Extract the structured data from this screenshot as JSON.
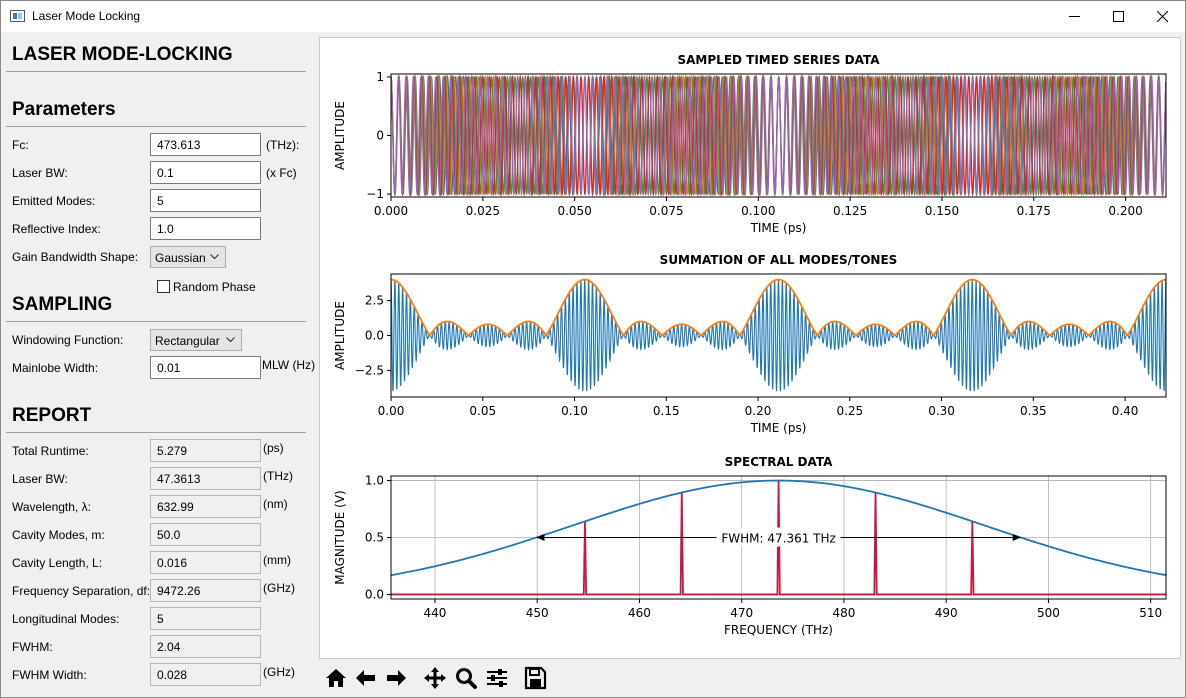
{
  "window": {
    "title": "Laser Mode Locking"
  },
  "sidebar": {
    "heading": "LASER MODE-LOCKING",
    "parameters": {
      "heading": "Parameters",
      "fc": {
        "label": "Fc:",
        "value": "473.613",
        "unit": "(THz):"
      },
      "laser_bw": {
        "label": "Laser BW:",
        "value": "0.1",
        "unit": "(x Fc)"
      },
      "emitted_modes": {
        "label": "Emitted Modes:",
        "value": "5"
      },
      "reflective_index": {
        "label": "Reflective Index:",
        "value": "1.0"
      },
      "gain_shape": {
        "label": "Gain Bandwidth Shape:",
        "value": "Gaussian"
      },
      "random_phase": {
        "label": "Random Phase",
        "checked": false
      }
    },
    "sampling": {
      "heading": "SAMPLING",
      "windowing": {
        "label": "Windowing Function:",
        "value": "Rectangular"
      },
      "mainlobe": {
        "label": "Mainlobe Width:",
        "value": "0.01",
        "unit": "MLW (Hz)"
      }
    },
    "report": {
      "heading": "REPORT",
      "rows": [
        {
          "label": "Total Runtime:",
          "value": "5.279",
          "unit": "(ps)"
        },
        {
          "label": "Laser BW:",
          "value": "47.3613",
          "unit": "(THz)"
        },
        {
          "label": "Wavelength, λ:",
          "value": "632.99",
          "unit": "(nm)"
        },
        {
          "label": "Cavity Modes, m:",
          "value": "50.0",
          "unit": ""
        },
        {
          "label": "Cavity Length, L:",
          "value": "0.016",
          "unit": "(mm)"
        },
        {
          "label": "Frequency Separation, df:",
          "value": "9472.26",
          "unit": "(GHz)"
        },
        {
          "label": "Longitudinal Modes:",
          "value": "5",
          "unit": ""
        },
        {
          "label": "FWHM:",
          "value": "2.04",
          "unit": ""
        },
        {
          "label": "FWHM Width:",
          "value": "0.028",
          "unit": "(GHz)"
        }
      ]
    }
  },
  "chart_data": [
    {
      "type": "line",
      "title": "SAMPLED TIMED SERIES DATA",
      "xlabel": "TIME (ps)",
      "ylabel": "AMPLITUDE",
      "xlim": [
        0,
        0.211
      ],
      "ylim": [
        -1.05,
        1.05
      ],
      "xticks": [
        "0.000",
        "0.025",
        "0.050",
        "0.075",
        "0.100",
        "0.125",
        "0.150",
        "0.175",
        "0.200"
      ],
      "xtick_values": [
        0,
        0.025,
        0.05,
        0.075,
        0.1,
        0.125,
        0.15,
        0.175,
        0.2
      ],
      "yticks": [
        "1",
        "0",
        "−1"
      ],
      "ytick_values": [
        1,
        0,
        -1
      ],
      "series": [
        {
          "name": "mode 1",
          "freq_thz": 454.67,
          "color": "#1f77b4"
        },
        {
          "name": "mode 2",
          "freq_thz": 464.14,
          "color": "#ff7f0e"
        },
        {
          "name": "mode 3",
          "freq_thz": 473.61,
          "color": "#2ca02c"
        },
        {
          "name": "mode 4",
          "freq_thz": 483.09,
          "color": "#d62728"
        },
        {
          "name": "mode 5",
          "freq_thz": 492.56,
          "color": "#9467bd"
        }
      ]
    },
    {
      "type": "line",
      "title": "SUMMATION OF ALL MODES/TONES",
      "xlabel": "TIME (ps)",
      "ylabel": "AMPLITUDE",
      "xlim": [
        0,
        0.4223
      ],
      "ylim": [
        -4.4,
        4.4
      ],
      "xticks": [
        "0.00",
        "0.05",
        "0.10",
        "0.15",
        "0.20",
        "0.25",
        "0.30",
        "0.35",
        "0.40"
      ],
      "xtick_values": [
        0,
        0.05,
        0.1,
        0.15,
        0.2,
        0.25,
        0.3,
        0.35,
        0.4
      ],
      "yticks": [
        "2.5",
        "0.0",
        "−2.5"
      ],
      "ytick_values": [
        2.5,
        0,
        -2.5
      ],
      "pulse_period_ps": 0.1056,
      "modes": 5,
      "series": [
        {
          "name": "signal",
          "color": "#1f77b4"
        },
        {
          "name": "envelope",
          "color": "#ff7f0e"
        }
      ]
    },
    {
      "type": "line",
      "title": "SPECTRAL DATA",
      "xlabel": "FREQUENCY (THz)",
      "ylabel": "MAGNITUDE (V)",
      "xlim": [
        435.7,
        511.5
      ],
      "ylim": [
        -0.04,
        1.04
      ],
      "xticks": [
        "440",
        "450",
        "460",
        "470",
        "480",
        "490",
        "500",
        "510"
      ],
      "xtick_values": [
        440,
        450,
        460,
        470,
        480,
        490,
        500,
        510
      ],
      "yticks": [
        "1.0",
        "0.5",
        "0.0"
      ],
      "ytick_values": [
        1.0,
        0.5,
        0.0
      ],
      "grid": true,
      "gain_center_thz": 473.613,
      "gain_fwhm_thz": 47.3613,
      "peaks_x": [
        454.67,
        464.14,
        473.61,
        483.09,
        492.56
      ],
      "peaks_y": [
        0.64,
        0.89,
        1.0,
        0.89,
        0.64
      ],
      "annotation": "FWHM: 47.361 THz",
      "fwhm_arrow": [
        449.93,
        497.29
      ],
      "series": [
        {
          "name": "gain profile",
          "color": "#1f77b4"
        },
        {
          "name": "modes spectrum",
          "color": "#c8173f"
        }
      ]
    }
  ],
  "toolbar": {
    "home": "home-icon",
    "back": "back-arrow-icon",
    "forward": "forward-arrow-icon",
    "pan": "pan-icon",
    "zoom": "zoom-icon",
    "configure": "configure-subplots-icon",
    "save": "save-icon"
  }
}
